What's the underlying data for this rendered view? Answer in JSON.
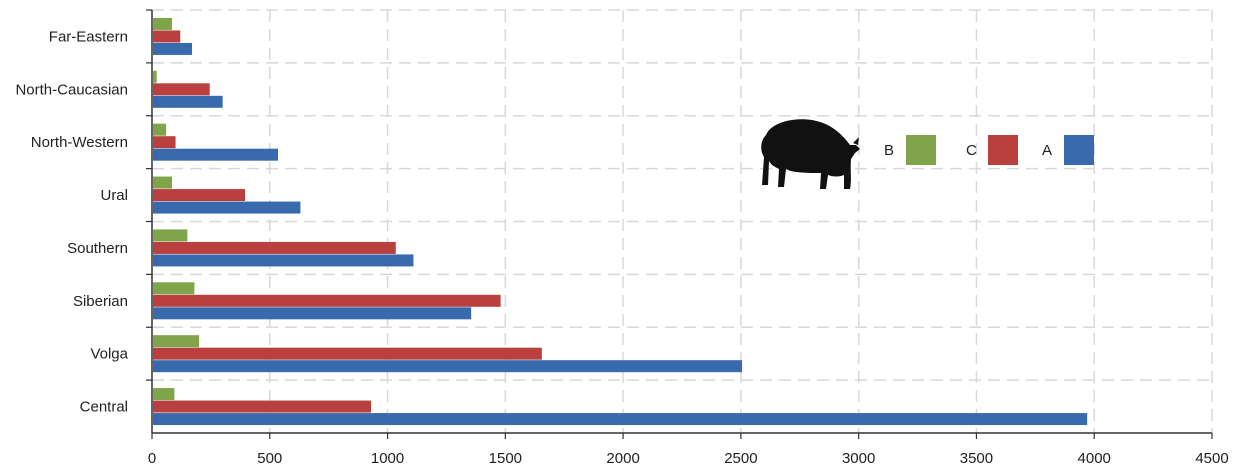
{
  "chart_data": {
    "type": "bar",
    "orientation": "horizontal",
    "categories": [
      "Far-Eastern",
      "North-Caucasian",
      "North-Western",
      "Ural",
      "Southern",
      "Siberian",
      "Volga",
      "Central"
    ],
    "series": [
      {
        "name": "B",
        "color": "#7fa44a",
        "values": [
          85,
          20,
          60,
          85,
          150,
          180,
          200,
          95
        ]
      },
      {
        "name": "C",
        "color": "#b9403f",
        "values": [
          120,
          245,
          100,
          395,
          1035,
          1480,
          1655,
          930
        ]
      },
      {
        "name": "A",
        "color": "#3a6aae",
        "values": [
          170,
          300,
          535,
          630,
          1110,
          1355,
          2505,
          3970
        ]
      }
    ],
    "xlim": [
      0,
      4500
    ],
    "x_ticks": [
      "0",
      "500",
      "1000",
      "1500",
      "2000",
      "2500",
      "3000",
      "3500",
      "4000",
      "4500"
    ],
    "grid": "dashed",
    "legend_position": "top-right",
    "legend_icon": "pig-silhouette-icon"
  }
}
